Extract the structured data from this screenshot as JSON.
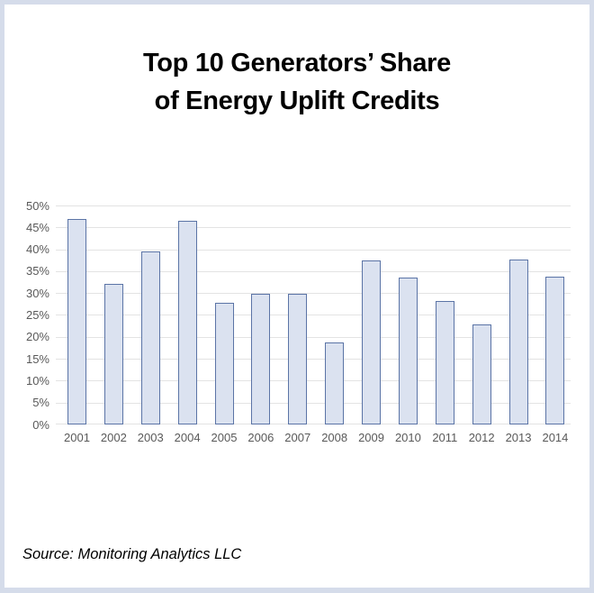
{
  "title": {
    "line1": "Top 10 Generators’ Share",
    "line2": "of Energy Uplift Credits"
  },
  "source": "Source: Monitoring Analytics LLC",
  "chart_data": {
    "type": "bar",
    "title": "Top 10 Generators’ Share of Energy Uplift Credits",
    "categories": [
      "2001",
      "2002",
      "2003",
      "2004",
      "2005",
      "2006",
      "2007",
      "2008",
      "2009",
      "2010",
      "2011",
      "2012",
      "2013",
      "2014"
    ],
    "values": [
      47.0,
      32.2,
      39.5,
      46.6,
      27.7,
      29.8,
      29.8,
      18.7,
      37.5,
      33.5,
      28.2,
      22.8,
      37.7,
      33.7
    ],
    "xlabel": "",
    "ylabel": "",
    "ylim": [
      0,
      50
    ],
    "ytick_step": 5,
    "ytick_format": "percent",
    "ytick_labels": [
      "0%",
      "5%",
      "10%",
      "15%",
      "20%",
      "25%",
      "30%",
      "35%",
      "40%",
      "45%",
      "50%"
    ],
    "grid": true,
    "legend": "none",
    "colors": {
      "bar_fill": "#dbe2f0",
      "bar_border": "#5b74a6",
      "gridline": "#e3e3e3",
      "tick_label": "#595959",
      "frame_border": "#d5dcea",
      "title_text": "#000000"
    }
  }
}
